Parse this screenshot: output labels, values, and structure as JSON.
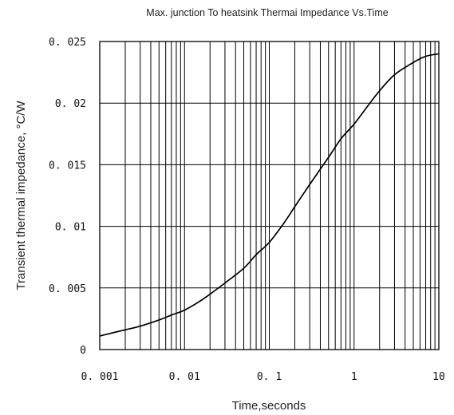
{
  "chart_data": {
    "type": "line",
    "title": "Max. junction To heatsink Thermai Impedance Vs.Time",
    "xlabel": "Time,seconds",
    "ylabel": "Transient thermal impedance, °C/W",
    "x_scale": "log",
    "xlim": [
      0.001,
      10
    ],
    "ylim": [
      0,
      0.025
    ],
    "grid": true,
    "x_ticks": [
      {
        "value": 0.001,
        "label": "0. 001"
      },
      {
        "value": 0.01,
        "label": "0. 01"
      },
      {
        "value": 0.1,
        "label": "0. 1"
      },
      {
        "value": 1,
        "label": "1"
      },
      {
        "value": 10,
        "label": "10"
      }
    ],
    "y_ticks": [
      {
        "value": 0,
        "label": "0"
      },
      {
        "value": 0.005,
        "label": "0. 005"
      },
      {
        "value": 0.01,
        "label": "0. 01"
      },
      {
        "value": 0.015,
        "label": "0. 015"
      },
      {
        "value": 0.02,
        "label": "0. 02"
      },
      {
        "value": 0.025,
        "label": "0. 025"
      }
    ],
    "series": [
      {
        "x": [
          0.001,
          0.0015,
          0.002,
          0.003,
          0.005,
          0.007,
          0.01,
          0.015,
          0.02,
          0.03,
          0.05,
          0.07,
          0.1,
          0.15,
          0.2,
          0.3,
          0.5,
          0.7,
          1,
          1.5,
          2,
          3,
          5,
          7,
          10
        ],
        "y": [
          0.0011,
          0.0014,
          0.0016,
          0.0019,
          0.0024,
          0.0028,
          0.0032,
          0.0039,
          0.0045,
          0.0054,
          0.0066,
          0.0077,
          0.0087,
          0.0103,
          0.0116,
          0.0134,
          0.0156,
          0.0171,
          0.0183,
          0.0199,
          0.021,
          0.0223,
          0.0233,
          0.0238,
          0.024
        ]
      }
    ]
  }
}
